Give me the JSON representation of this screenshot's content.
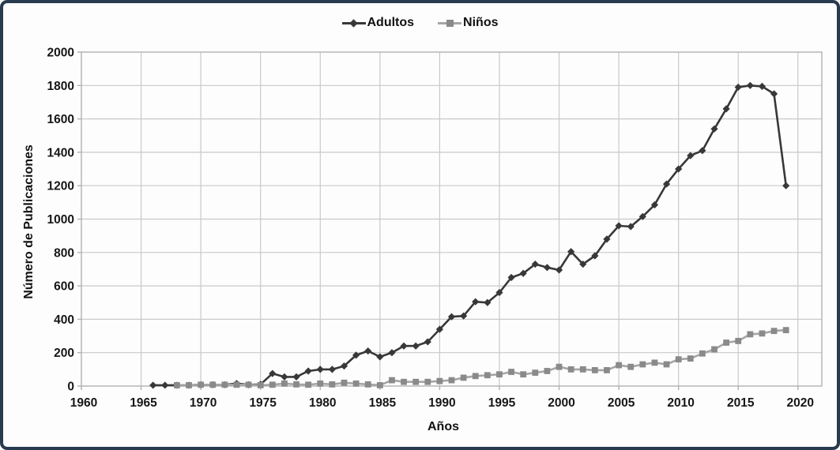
{
  "figure": {
    "x_axis_label": "Años",
    "y_axis_label": "Número de Publicaciones",
    "legend": [
      {
        "label": "Adultos",
        "marker": "diamond"
      },
      {
        "label": "Niños",
        "marker": "square"
      }
    ],
    "border_color": "#293b4e",
    "background": "#fdfdfd"
  },
  "chart_data": {
    "type": "line",
    "title": "",
    "xlabel": "Años",
    "ylabel": "Número de Publicaciones",
    "xlim": [
      1960,
      2022
    ],
    "ylim": [
      0,
      2000
    ],
    "x_ticks": [
      1960,
      1965,
      1970,
      1975,
      1980,
      1985,
      1990,
      1995,
      2000,
      2005,
      2010,
      2015,
      2020
    ],
    "y_ticks": [
      0,
      200,
      400,
      600,
      800,
      1000,
      1200,
      1400,
      1600,
      1800,
      2000
    ],
    "grid": true,
    "legend_position": "top-center",
    "grid_color": "#c9c9c9",
    "frame_color": "#b2b2b2",
    "series": [
      {
        "name": "Adultos",
        "marker": "diamond",
        "color": "#383838",
        "line_color": "#383838",
        "x": [
          1966,
          1967,
          1968,
          1969,
          1970,
          1971,
          1972,
          1973,
          1974,
          1975,
          1976,
          1977,
          1978,
          1979,
          1980,
          1981,
          1982,
          1983,
          1984,
          1985,
          1986,
          1987,
          1988,
          1989,
          1990,
          1991,
          1992,
          1993,
          1994,
          1995,
          1996,
          1997,
          1998,
          1999,
          2000,
          2001,
          2002,
          2003,
          2004,
          2005,
          2006,
          2007,
          2008,
          2009,
          2010,
          2011,
          2012,
          2013,
          2014,
          2015,
          2016,
          2017,
          2018,
          2019
        ],
        "values": [
          5,
          5,
          5,
          5,
          8,
          8,
          8,
          15,
          8,
          10,
          75,
          55,
          55,
          90,
          100,
          100,
          120,
          185,
          210,
          175,
          200,
          240,
          240,
          265,
          340,
          415,
          420,
          505,
          500,
          560,
          650,
          675,
          730,
          710,
          695,
          805,
          730,
          780,
          880,
          960,
          955,
          1015,
          1085,
          1210,
          1300,
          1380,
          1410,
          1540,
          1660,
          1790,
          1800,
          1795,
          1750,
          1200
        ]
      },
      {
        "name": "Niños",
        "marker": "square",
        "color": "#8a8a8a",
        "line_color": "#a5a5a5",
        "x": [
          1968,
          1969,
          1970,
          1971,
          1972,
          1973,
          1974,
          1975,
          1976,
          1977,
          1978,
          1979,
          1980,
          1981,
          1982,
          1983,
          1984,
          1985,
          1986,
          1987,
          1988,
          1989,
          1990,
          1991,
          1992,
          1993,
          1994,
          1995,
          1996,
          1997,
          1998,
          1999,
          2000,
          2001,
          2002,
          2003,
          2004,
          2005,
          2006,
          2007,
          2008,
          2009,
          2010,
          2011,
          2012,
          2013,
          2014,
          2015,
          2016,
          2017,
          2018,
          2019
        ],
        "values": [
          5,
          5,
          8,
          8,
          8,
          8,
          8,
          5,
          8,
          15,
          10,
          8,
          15,
          10,
          20,
          15,
          10,
          5,
          35,
          25,
          25,
          25,
          30,
          35,
          50,
          60,
          65,
          70,
          85,
          70,
          80,
          90,
          115,
          100,
          100,
          95,
          95,
          125,
          115,
          130,
          140,
          130,
          160,
          165,
          195,
          220,
          260,
          270,
          310,
          315,
          330,
          335
        ]
      }
    ]
  }
}
